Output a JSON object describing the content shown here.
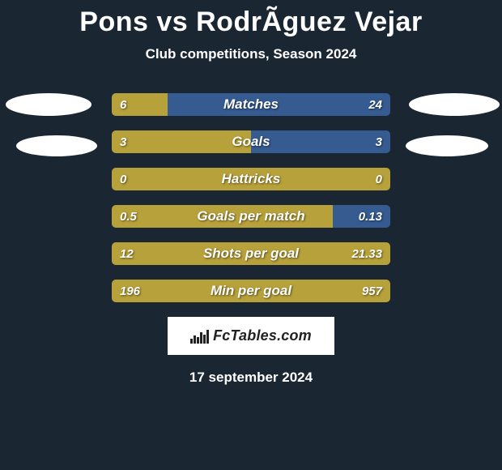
{
  "title": "Pons vs RodrÃ­guez Vejar",
  "subtitle": "Club competitions, Season 2024",
  "date": "17 september 2024",
  "brand": "FcTables.com",
  "colors": {
    "left": "#b7a13a",
    "right": "#355b90",
    "background": "#1b2633",
    "text": "#ffffff"
  },
  "stats": [
    {
      "label": "Matches",
      "left_value": "6",
      "right_value": "24",
      "left_pct": 20.0,
      "right_pct": 80.0
    },
    {
      "label": "Goals",
      "left_value": "3",
      "right_value": "3",
      "left_pct": 50.0,
      "right_pct": 50.0
    },
    {
      "label": "Hattricks",
      "left_value": "0",
      "right_value": "0",
      "left_pct": 100.0,
      "right_pct": 0.0
    },
    {
      "label": "Goals per match",
      "left_value": "0.5",
      "right_value": "0.13",
      "left_pct": 79.4,
      "right_pct": 20.6
    },
    {
      "label": "Shots per goal",
      "left_value": "12",
      "right_value": "21.33",
      "left_pct": 100.0,
      "right_pct": 0.0
    },
    {
      "label": "Min per goal",
      "left_value": "196",
      "right_value": "957",
      "left_pct": 100.0,
      "right_pct": 0.0
    }
  ]
}
